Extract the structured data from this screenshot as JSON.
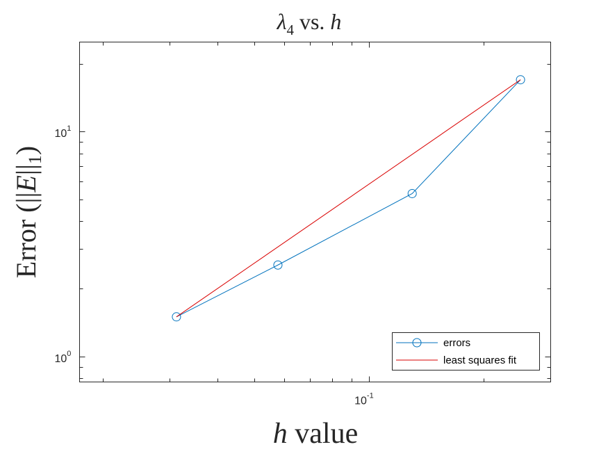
{
  "chart_data": {
    "type": "line",
    "title": "λ₄ vs. h",
    "title_parts": {
      "lambda": "λ",
      "sub": "4",
      "mid": " vs. ",
      "h": "h"
    },
    "xlabel": "h value",
    "xlabel_parts": {
      "h": "h",
      "rest": " value"
    },
    "ylabel": "Error (||E||₁)",
    "ylabel_parts": {
      "pre": "Error (||",
      "E": "E",
      "mid": "||",
      "sub": "1",
      "post": ")"
    },
    "xscale": "log",
    "yscale": "log",
    "xlim": [
      0.0174,
      0.3
    ],
    "ylim": [
      0.77,
      25.0
    ],
    "grid": false,
    "legend_position": "bottom-right",
    "x_tick_labels": [
      {
        "value": 0.1,
        "base": "10",
        "exp": "-1"
      }
    ],
    "y_tick_labels": [
      {
        "value": 1,
        "base": "10",
        "exp": "0"
      },
      {
        "value": 10,
        "base": "10",
        "exp": "1"
      }
    ],
    "series": [
      {
        "name": "errors",
        "color": "#0072BD",
        "marker": "circle",
        "x": [
          0.03125,
          0.0577,
          0.1299,
          0.25
        ],
        "y": [
          1.5,
          2.55,
          5.3,
          17.0
        ]
      },
      {
        "name": "least squares fit",
        "color": "#D90000",
        "marker": "none",
        "x": [
          0.03125,
          0.25
        ],
        "y": [
          1.5,
          17.0
        ]
      }
    ]
  }
}
